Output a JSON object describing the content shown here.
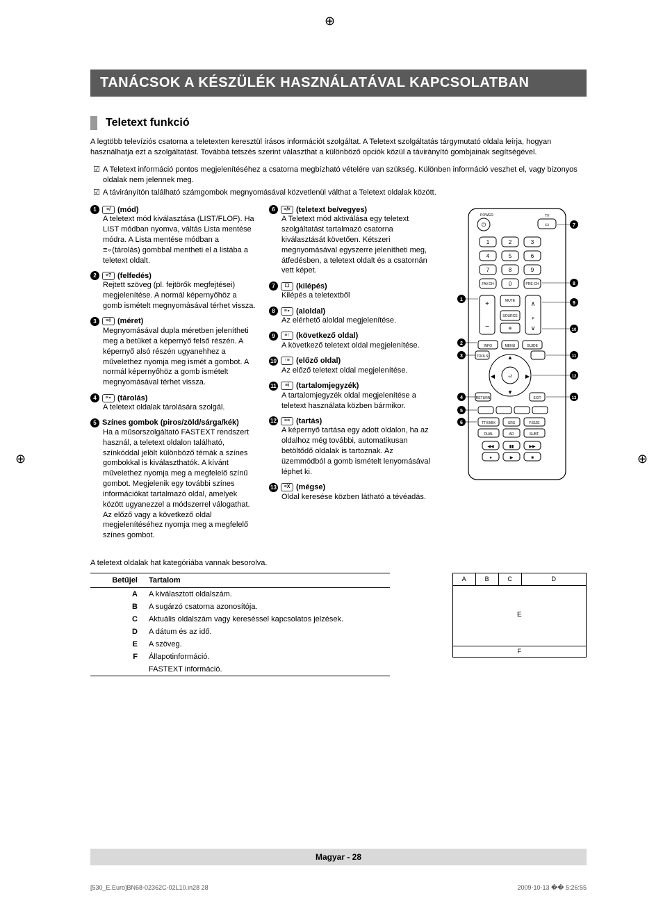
{
  "banner": "TANÁCSOK A KÉSZÜLÉK HASZNÁLATÁVAL KAPCSOLATBAN",
  "section_title": "Teletext funkció",
  "intro": "A legtöbb televíziós csatorna a teletexten keresztül írásos információt szolgáltat. A Teletext szolgáltatás tárgymutató oldala leírja, hogyan használhatja ezt a szolgáltatást. Továbbá tetszés szerint választhat a különböző opciók közül a távirányító gombjainak segítségével.",
  "notes": [
    "A Teletext információ pontos megjelenítéséhez a csatorna megbízható vételére van szükség. Különben információ veszhet el, vagy bizonyos oldalak nem jelennek meg.",
    "A távirányítón található számgombok megnyomásával közvetlenül válthat a Teletext oldalak között."
  ],
  "left_items": [
    {
      "num": "1",
      "icon": "≡/",
      "title": "(mód)",
      "desc": "A teletext mód kiválasztása (LIST/FLOF). Ha LIST módban nyomva, váltás Lista mentése módra. A Lista mentése módban a ≡∘(tárolás) gombbal mentheti el a listába a teletext oldalt."
    },
    {
      "num": "2",
      "icon": "≡?",
      "title": "(felfedés)",
      "desc": "Rejtett szöveg (pl. fejtörők megfejtései) megjelenítése. A normál képernyőhöz a gomb ismételt megnyomásával térhet vissza."
    },
    {
      "num": "3",
      "icon": "≡◊",
      "title": "(méret)",
      "desc": "Megnyomásával dupla méretben jelenítheti meg a betűket a képernyő felső részén. A képernyő alsó részén ugyanehhez a művelethez nyomja meg ismét a gombot. A normál képernyőhöz a gomb ismételt megnyomásával térhet vissza."
    },
    {
      "num": "4",
      "icon": "≡∘",
      "title": "(tárolás)",
      "desc": "A teletext oldalak tárolására szolgál."
    },
    {
      "num": "5",
      "icon": "",
      "title": "Színes gombok (piros/zöld/sárga/kék)",
      "desc": "Ha a műsorszolgáltató FASTEXT rendszert használ, a teletext oldalon található, színkóddal jelölt különböző témák a színes gombokkal is kiválaszthatók. A kívánt művelethez nyomja meg a megfelelő színű gombot. Megjelenik egy további színes információkat tartalmazó oldal, amelyek között ugyanezzel a módszerrel válogathat. Az előző vagy a következő oldal megjelenítéséhez nyomja meg a megfelelő színes gombot."
    }
  ],
  "mid_items": [
    {
      "num": "6",
      "icon": "≡/☓",
      "title": "(teletext be/vegyes)",
      "desc": "A Teletext mód aktiválása egy teletext szolgáltatást tartalmazó csatorna kiválasztását követően. Kétszeri megnyomásával egyszerre jelenítheti meg, átfedésben, a teletext oldalt és a csatornán vett képet."
    },
    {
      "num": "7",
      "icon": "☐",
      "title": "(kilépés)",
      "desc": "Kilépés a teletextből"
    },
    {
      "num": "8",
      "icon": "≡∘",
      "title": "(aloldal)",
      "desc": "Az elérhető aloldal megjelenítése."
    },
    {
      "num": "9",
      "icon": "≡↑",
      "title": "(következő oldal)",
      "desc": "A következő teletext oldal megjelenítése."
    },
    {
      "num": "10",
      "icon": "↑≡",
      "title": "(előző oldal)",
      "desc": "Az előző teletext oldal megjelenítése."
    },
    {
      "num": "11",
      "icon": "≡i",
      "title": "(tartalomjegyzék)",
      "desc": "A tartalomjegyzék oldal megjelenítése a teletext használata közben bármikor."
    },
    {
      "num": "12",
      "icon": "≡≡",
      "title": "(tartás)",
      "desc": "A képernyő tartása egy adott oldalon, ha az oldalhoz még további, automatikusan betöltődő oldalak is tartoznak. Az üzemmódból a gomb ismételt lenyomásával léphet ki."
    },
    {
      "num": "13",
      "icon": "≡X",
      "title": "(mégse)",
      "desc": "Oldal keresése közben látható a tévéadás."
    }
  ],
  "bottom_note": "A teletext oldalak hat kategóriába vannak besorolva.",
  "table": {
    "headers": [
      "Betűjel",
      "Tartalom"
    ],
    "rows": [
      [
        "A",
        "A kiválasztott oldalszám."
      ],
      [
        "B",
        "A sugárzó csatorna azonosítója."
      ],
      [
        "C",
        "Aktuális oldalszám vagy kereséssel kapcsolatos jelzések."
      ],
      [
        "D",
        "A dátum és az idő."
      ],
      [
        "E",
        "A szöveg."
      ],
      [
        "F",
        "Állapotinformáció."
      ],
      [
        "",
        "FASTEXT információ."
      ]
    ]
  },
  "layout_labels": {
    "a": "A",
    "b": "B",
    "c": "C",
    "d": "D",
    "e": "E",
    "f": "F"
  },
  "footer": "Magyar - 28",
  "meta_left": "[530_E.Euro]BN68-02362C-02L10.in28   28",
  "meta_right": "2009-10-13   �� 5:26:55",
  "colors": {
    "banner_bg": "#5a5a5a",
    "footer_bg": "#d9d9d9"
  }
}
